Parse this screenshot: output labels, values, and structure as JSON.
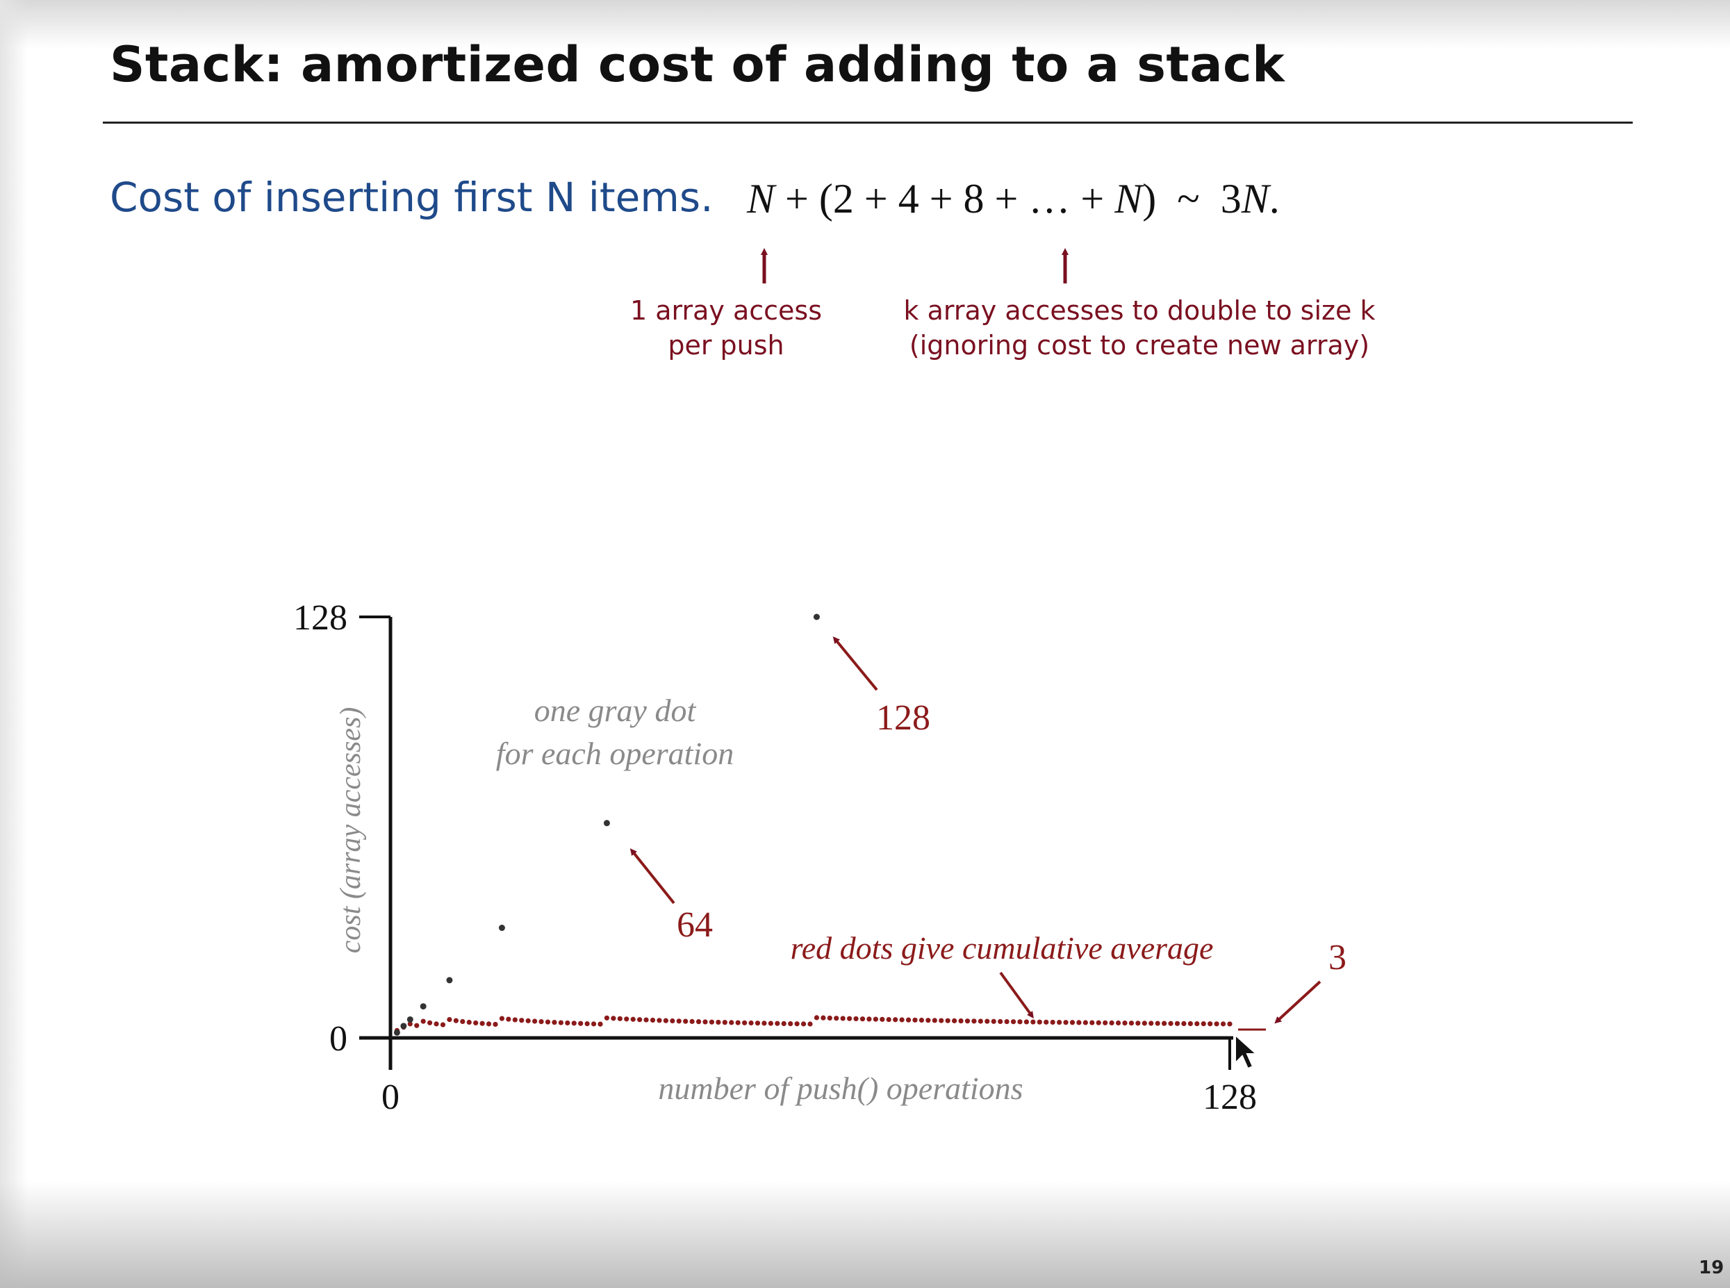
{
  "slide": {
    "title": "Stack:  amortized cost of adding to a stack",
    "cost_text": "Cost of inserting first N items.",
    "formula": {
      "n": "N",
      "plus1": "+",
      "paren_open": "(2 + 4 + 8 + … + ",
      "n2": "N",
      "paren_close": ")",
      "tilde": "~",
      "result_num": "3",
      "result_var": "N",
      "result_end": "."
    },
    "note_left_line1": "1 array access",
    "note_left_line2": "per push",
    "note_right_line1": "k array accesses to double to size k",
    "note_right_line2": "(ignoring cost to create new array)",
    "page_number": "19"
  },
  "colors": {
    "title": "#111111",
    "cost_text": "#1f4a8a",
    "annotation": "#7a1020",
    "gray_dot": "#333333",
    "red_dot": "#8b1a1a"
  },
  "chart_data": {
    "type": "scatter",
    "xlabel": "number of push() operations",
    "ylabel": "cost (array accesses)",
    "xlim": [
      0,
      128
    ],
    "ylim": [
      0,
      128
    ],
    "x_ticks": [
      "0",
      "128"
    ],
    "y_ticks": [
      "0",
      "128"
    ],
    "series": [
      {
        "name": "one gray dot for each operation",
        "color": "#333333",
        "points": [
          [
            1,
            1
          ],
          [
            2,
            3
          ],
          [
            3,
            5
          ],
          [
            5,
            9
          ],
          [
            9,
            17
          ],
          [
            17,
            33
          ],
          [
            33,
            65
          ],
          [
            65,
            129
          ]
        ]
      },
      {
        "name": "red dots give cumulative average",
        "color": "#8b1a1a",
        "points": "cumulative average of the gray series for every push 1..128 (ranges 1 to 3)"
      }
    ],
    "annotations": {
      "gray_dot_label_line1": "one gray dot",
      "gray_dot_label_line2": "for each operation",
      "red_dot_label": "red dots give cumulative average",
      "label_128": "128",
      "label_64": "64",
      "label_3": "3"
    }
  }
}
